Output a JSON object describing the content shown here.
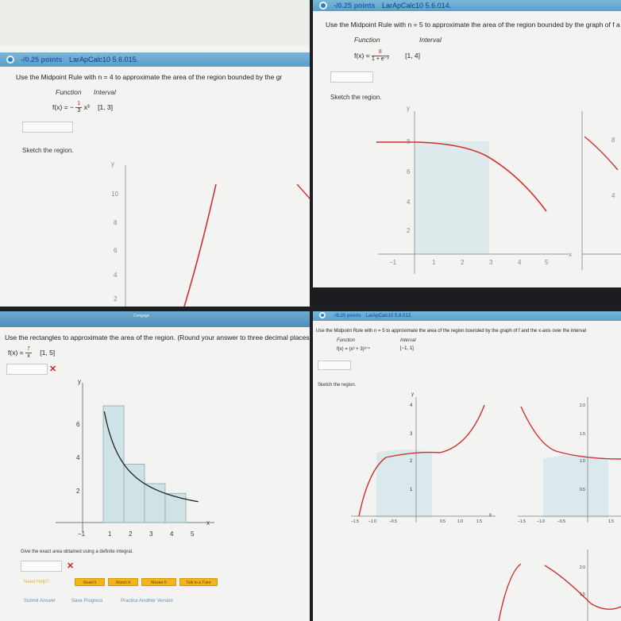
{
  "panels": {
    "top_left": {
      "header": {
        "points": "-/0.25 points",
        "assignment": "LarApCalc10 5.6.015."
      },
      "prompt": "Use the Midpoint Rule with  n = 4  to approximate the area of the region bounded by the gr",
      "function_header": "Function",
      "interval_header": "Interval",
      "function_lhs": "f(x) = −",
      "function_coef_num": "1",
      "function_coef_den": "3",
      "function_rhs": "x³",
      "interval": "[1, 3]",
      "sketch_label": "Sketch the region.",
      "axis_label_y": "y",
      "y_ticks": [
        "10",
        "8",
        "6",
        "4",
        "2"
      ]
    },
    "top_right": {
      "header": {
        "points": "-/0.25 points",
        "assignment": "LarApCalc10 5.6.014."
      },
      "prompt": "Use the Midpoint Rule with  n = 5  to approximate the area of the region bounded by the graph of f a",
      "function_header": "Function",
      "interval_header": "Interval",
      "function_lhs": "f(x) =",
      "function_num": "8",
      "function_den": "1 + e⁻ˣ",
      "interval": "[1, 4]",
      "sketch_label": "Sketch the region.",
      "axis_label_y": "y",
      "y_ticks": [
        "8",
        "6",
        "4",
        "2"
      ],
      "x_ticks": [
        "−1",
        "1",
        "2",
        "3",
        "4",
        "5"
      ],
      "axis_label_x": "x",
      "side_tick_8": "8",
      "side_tick_4": "4"
    },
    "bottom_left": {
      "top_strip": "Cengage",
      "prompt": "Use the rectangles to approximate the area of the region. (Round your answer to three decimal places.)",
      "function_lhs": "f(x) =",
      "function_num": "7",
      "function_den": "x",
      "interval": "[1, 5]",
      "axis_label_y": "y",
      "y_ticks": [
        "6",
        "4",
        "2"
      ],
      "x_ticks": [
        "−1",
        "1",
        "2",
        "3",
        "4",
        "5"
      ],
      "axis_label_x": "x",
      "exact_prompt": "Give the exact area obtained using a definite integral.",
      "need_help": "Need Help?",
      "help_buttons": [
        "Read It",
        "Watch It",
        "Master It",
        "Talk to a Tutor"
      ],
      "footer_links": [
        "Submit Answer",
        "Save Progress",
        "Practice Another Version"
      ]
    },
    "bottom_right": {
      "header": {
        "points": "-/0.25 points",
        "assignment": "LarApCalc10 5.6.012."
      },
      "prompt": "Use the Midpoint Rule with  n = 5  to approximate the area of the region bounded by the graph of f and the x-axis over the interval",
      "function_header": "Function",
      "interval_header": "Interval",
      "function": "f(x) = (x³ + 3)³ᐟ⁴",
      "interval": "[−1, 1]",
      "sketch_label": "Sketch the region.",
      "axis_label_y": "y",
      "y_ticks": [
        "4",
        "3",
        "2",
        "1"
      ],
      "x_ticks": [
        "−1.5",
        "−1.0",
        "−0.5",
        "0.5",
        "1.0",
        "1.5"
      ],
      "axis_label_x": "x",
      "right_y_ticks": [
        "2.0",
        "1.5",
        "1.0",
        "0.5"
      ],
      "right_x_ticks": [
        "−1.5",
        "−1.0",
        "−0.5",
        "1.5"
      ],
      "lower_y_ticks": [
        "2.0",
        "1.5"
      ]
    }
  },
  "colors": {
    "header_bar": "#5a9fc9",
    "curve": "#d03030",
    "region_fill": "#cfe3e6",
    "button": "#f2b31b",
    "error": "#d21f26"
  }
}
